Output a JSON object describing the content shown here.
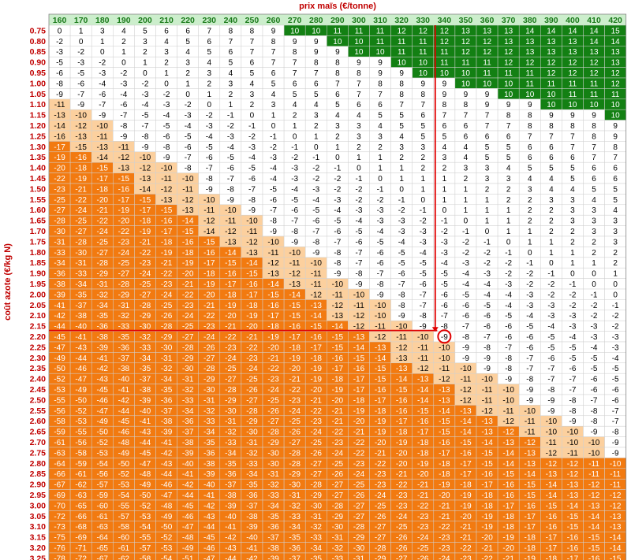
{
  "chart_data": {
    "type": "heatmap",
    "xlabel": "prix maïs (€/tonne)",
    "ylabel": "coût azote (€/kg N)",
    "x": [
      160,
      170,
      180,
      190,
      200,
      210,
      220,
      230,
      240,
      250,
      260,
      270,
      280,
      290,
      300,
      310,
      320,
      330,
      340,
      350,
      360,
      370,
      380,
      390,
      400,
      410,
      420
    ],
    "y": [
      0.75,
      0.8,
      0.85,
      0.9,
      0.95,
      1.0,
      1.05,
      1.1,
      1.15,
      1.2,
      1.25,
      1.3,
      1.35,
      1.4,
      1.45,
      1.5,
      1.55,
      1.6,
      1.65,
      1.7,
      1.75,
      1.8,
      1.85,
      1.9,
      1.95,
      2.0,
      2.05,
      2.1,
      2.15,
      2.2,
      2.25,
      2.3,
      2.35,
      2.4,
      2.45,
      2.5,
      2.55,
      2.6,
      2.65,
      2.7,
      2.75,
      2.8,
      2.85,
      2.9,
      2.95,
      3.0,
      3.05,
      3.1,
      3.15,
      3.2,
      3.25
    ],
    "values": [
      [
        0,
        1,
        3,
        4,
        5,
        6,
        6,
        7,
        8,
        8,
        9,
        10,
        10,
        11,
        11,
        11,
        12,
        12,
        12,
        13,
        13,
        13,
        14,
        14,
        14,
        14,
        15
      ],
      [
        -2,
        0,
        1,
        2,
        3,
        4,
        5,
        6,
        7,
        7,
        8,
        9,
        9,
        10,
        10,
        11,
        11,
        11,
        12,
        12,
        12,
        13,
        13,
        13,
        13,
        14,
        14
      ],
      [
        -3,
        -2,
        0,
        1,
        2,
        3,
        4,
        5,
        6,
        7,
        7,
        8,
        9,
        9,
        10,
        10,
        11,
        11,
        11,
        12,
        12,
        12,
        13,
        13,
        13,
        13,
        13
      ],
      [
        -5,
        -3,
        -2,
        0,
        1,
        2,
        3,
        4,
        5,
        6,
        7,
        7,
        8,
        8,
        9,
        9,
        10,
        10,
        11,
        11,
        11,
        12,
        12,
        12,
        12,
        12,
        13
      ],
      [
        -6,
        -5,
        -3,
        -2,
        0,
        1,
        2,
        3,
        4,
        5,
        6,
        7,
        7,
        8,
        8,
        9,
        9,
        10,
        10,
        10,
        11,
        11,
        11,
        12,
        12,
        12,
        12
      ],
      [
        -8,
        -6,
        -4,
        -3,
        -2,
        0,
        1,
        2,
        3,
        4,
        5,
        6,
        6,
        7,
        7,
        8,
        8,
        9,
        9,
        10,
        10,
        10,
        11,
        11,
        11,
        11,
        12
      ],
      [
        -9,
        -7,
        -6,
        -4,
        -3,
        -2,
        0,
        1,
        2,
        3,
        4,
        5,
        5,
        6,
        7,
        7,
        8,
        8,
        9,
        9,
        9,
        10,
        10,
        10,
        11,
        11,
        11
      ],
      [
        -11,
        -9,
        -7,
        -6,
        -4,
        -3,
        -2,
        0,
        1,
        2,
        3,
        4,
        4,
        5,
        6,
        6,
        7,
        7,
        8,
        8,
        9,
        9,
        9,
        10,
        10,
        10,
        10
      ],
      [
        -13,
        -10,
        -9,
        -7,
        -5,
        -4,
        -3,
        -2,
        -1,
        0,
        1,
        2,
        3,
        4,
        4,
        5,
        5,
        6,
        7,
        7,
        7,
        8,
        8,
        9,
        9,
        9,
        10
      ],
      [
        -14,
        -12,
        -10,
        -8,
        -7,
        -5,
        -4,
        -3,
        -2,
        -1,
        0,
        1,
        2,
        3,
        3,
        4,
        5,
        5,
        6,
        6,
        7,
        7,
        8,
        8,
        8,
        8,
        9
      ],
      [
        -16,
        -13,
        -11,
        -9,
        -8,
        -6,
        -5,
        -4,
        -3,
        -2,
        -1,
        0,
        1,
        2,
        3,
        3,
        4,
        5,
        5,
        6,
        6,
        6,
        7,
        7,
        7,
        8,
        9
      ],
      [
        -17,
        -15,
        -13,
        -11,
        -9,
        -8,
        -6,
        -5,
        -4,
        -3,
        -2,
        -1,
        0,
        1,
        2,
        2,
        3,
        3,
        4,
        4,
        5,
        5,
        6,
        6,
        7,
        7,
        8
      ],
      [
        -19,
        -16,
        -14,
        -12,
        -10,
        -9,
        -7,
        -6,
        -5,
        -4,
        -3,
        -2,
        -1,
        0,
        1,
        1,
        2,
        2,
        3,
        4,
        5,
        5,
        6,
        6,
        6,
        7,
        7
      ],
      [
        -20,
        -18,
        -15,
        -13,
        -12,
        -10,
        -8,
        -7,
        -6,
        -5,
        -4,
        -3,
        -2,
        -1,
        0,
        1,
        1,
        2,
        2,
        3,
        3,
        4,
        5,
        5,
        5,
        6,
        6
      ],
      [
        -22,
        -19,
        -17,
        -15,
        -13,
        -11,
        -10,
        -8,
        -7,
        -6,
        -4,
        -3,
        -2,
        -2,
        -1,
        0,
        1,
        1,
        1,
        2,
        3,
        3,
        4,
        4,
        5,
        6,
        6
      ],
      [
        -23,
        -21,
        -18,
        -16,
        -14,
        -12,
        -11,
        -9,
        -8,
        -7,
        -5,
        -4,
        -3,
        -2,
        -2,
        -1,
        0,
        1,
        1,
        1,
        2,
        2,
        3,
        4,
        4,
        5,
        5
      ],
      [
        -25,
        -22,
        -20,
        -17,
        -15,
        -13,
        -12,
        -10,
        -9,
        -8,
        -6,
        -5,
        -4,
        -3,
        -2,
        -2,
        -1,
        0,
        1,
        1,
        1,
        2,
        2,
        3,
        3,
        4,
        5
      ],
      [
        -27,
        -24,
        -21,
        -19,
        -17,
        -15,
        -13,
        -11,
        -10,
        -9,
        -7,
        -6,
        -5,
        -4,
        -3,
        -3,
        -2,
        -1,
        0,
        1,
        1,
        1,
        2,
        2,
        3,
        3,
        4
      ],
      [
        -28,
        -25,
        -22,
        -20,
        -18,
        -16,
        -14,
        -12,
        -11,
        -10,
        -8,
        -7,
        -6,
        -5,
        -4,
        -3,
        -3,
        -2,
        -1,
        0,
        1,
        1,
        2,
        2,
        3,
        3,
        3
      ],
      [
        -30,
        -27,
        -24,
        -22,
        -19,
        -17,
        -15,
        -14,
        -12,
        -11,
        -9,
        -8,
        -7,
        -6,
        -5,
        -4,
        -3,
        -3,
        -2,
        -1,
        0,
        1,
        1,
        2,
        2,
        3,
        3
      ],
      [
        -31,
        -28,
        -25,
        -23,
        -21,
        -18,
        -16,
        -15,
        -13,
        -12,
        -10,
        -9,
        -8,
        -7,
        -6,
        -5,
        -4,
        -3,
        -3,
        -2,
        -1,
        0,
        1,
        1,
        2,
        2,
        3
      ],
      [
        -33,
        -30,
        -27,
        -24,
        -22,
        -19,
        -18,
        -16,
        -14,
        -13,
        -11,
        -10,
        -9,
        -8,
        -7,
        -6,
        -5,
        -4,
        -3,
        -2,
        -2,
        -1,
        0,
        1,
        1,
        2,
        2
      ],
      [
        -34,
        -31,
        -28,
        -25,
        -23,
        -21,
        -19,
        -17,
        -15,
        -14,
        -12,
        -11,
        -10,
        -8,
        -7,
        -6,
        -5,
        -5,
        -4,
        -3,
        -2,
        -2,
        -1,
        0,
        1,
        1,
        2
      ],
      [
        -36,
        -33,
        -29,
        -27,
        -24,
        -22,
        -20,
        -18,
        -16,
        -15,
        -13,
        -12,
        -11,
        -9,
        -8,
        -7,
        -6,
        -5,
        -5,
        -4,
        -3,
        -2,
        -2,
        -1,
        0,
        0,
        1
      ],
      [
        -38,
        -34,
        -31,
        -28,
        -25,
        -23,
        -21,
        -19,
        -17,
        -16,
        -14,
        -13,
        -11,
        -10,
        -9,
        -8,
        -7,
        -6,
        -5,
        -4,
        -4,
        -3,
        -2,
        -2,
        -1,
        0,
        0
      ],
      [
        -39,
        -35,
        -32,
        -29,
        -27,
        -24,
        -22,
        -20,
        -18,
        -17,
        -15,
        -14,
        -12,
        -11,
        -10,
        -9,
        -8,
        -7,
        -6,
        -5,
        -4,
        -4,
        -3,
        -2,
        -2,
        -1,
        0
      ],
      [
        -41,
        -37,
        -34,
        -31,
        -28,
        -25,
        -23,
        -21,
        -19,
        -18,
        -16,
        -15,
        -13,
        -12,
        -11,
        -10,
        -8,
        -7,
        -6,
        -6,
        -5,
        -4,
        -3,
        -3,
        -2,
        -2,
        -1
      ],
      [
        -42,
        -38,
        -35,
        -32,
        -29,
        -26,
        -24,
        -22,
        -20,
        -19,
        -17,
        -15,
        -14,
        -13,
        -12,
        -10,
        -9,
        -8,
        -7,
        -6,
        -6,
        -5,
        -4,
        -3,
        -3,
        -2,
        -2
      ],
      [
        -44,
        -40,
        -36,
        -33,
        -30,
        -28,
        -25,
        -23,
        -21,
        -20,
        -18,
        -16,
        -15,
        -14,
        -12,
        -11,
        -10,
        -9,
        -8,
        -7,
        -6,
        -6,
        -5,
        -4,
        -3,
        -3,
        -2
      ],
      [
        -45,
        -41,
        -38,
        -35,
        -32,
        -29,
        -27,
        -24,
        -22,
        -21,
        -19,
        -17,
        -16,
        -15,
        -13,
        -12,
        -11,
        -10,
        -9,
        -8,
        -7,
        -6,
        -6,
        -5,
        -4,
        -3,
        -3
      ],
      [
        -47,
        -43,
        -39,
        -36,
        -33,
        -30,
        -28,
        -26,
        -23,
        -22,
        -20,
        -18,
        -17,
        -15,
        -14,
        -13,
        -12,
        -11,
        -10,
        -9,
        -8,
        -7,
        -6,
        -5,
        -5,
        -4,
        -3
      ],
      [
        -49,
        -44,
        -41,
        -37,
        -34,
        -31,
        -29,
        -27,
        -24,
        -23,
        -21,
        -19,
        -18,
        -16,
        -15,
        -14,
        -13,
        -11,
        -10,
        -9,
        -9,
        -8,
        -7,
        -6,
        -5,
        -5,
        -4
      ],
      [
        -50,
        -46,
        -42,
        -38,
        -35,
        -32,
        -30,
        -28,
        -25,
        -24,
        -22,
        -20,
        -19,
        -17,
        -16,
        -15,
        -13,
        -12,
        -11,
        -10,
        -9,
        -8,
        -7,
        -7,
        -6,
        -5,
        -5
      ],
      [
        -52,
        -47,
        -43,
        -40,
        -37,
        -34,
        -31,
        -29,
        -27,
        -25,
        -23,
        -21,
        -19,
        -18,
        -17,
        -15,
        -14,
        -13,
        -12,
        -11,
        -10,
        -9,
        -8,
        -7,
        -7,
        -6,
        -5
      ],
      [
        -53,
        -49,
        -45,
        -41,
        -38,
        -35,
        -32,
        -30,
        -28,
        -26,
        -24,
        -22,
        -20,
        -19,
        -17,
        -16,
        -15,
        -14,
        -13,
        -12,
        -11,
        -10,
        -9,
        -8,
        -7,
        -6,
        -6
      ],
      [
        -55,
        -50,
        -46,
        -42,
        -39,
        -36,
        -33,
        -31,
        -29,
        -27,
        -25,
        -23,
        -21,
        -20,
        -18,
        -17,
        -16,
        -14,
        -13,
        -12,
        -11,
        -10,
        -9,
        -9,
        -8,
        -7,
        -6
      ],
      [
        -56,
        -52,
        -47,
        -44,
        -40,
        -37,
        -34,
        -32,
        -30,
        -28,
        -26,
        -24,
        -22,
        -21,
        -19,
        -18,
        -16,
        -15,
        -14,
        -13,
        -12,
        -11,
        -10,
        -9,
        -8,
        -8,
        -7
      ],
      [
        -58,
        -53,
        -49,
        -45,
        -41,
        -38,
        -36,
        -33,
        -31,
        -29,
        -27,
        -25,
        -23,
        -21,
        -20,
        -19,
        -17,
        -16,
        -15,
        -14,
        -13,
        -12,
        -11,
        -10,
        -9,
        -8,
        -7
      ],
      [
        -59,
        -55,
        -50,
        -46,
        -43,
        -39,
        -37,
        -34,
        -32,
        -30,
        -28,
        -26,
        -24,
        -22,
        -21,
        -19,
        -18,
        -17,
        -15,
        -14,
        -13,
        -12,
        -11,
        -10,
        -10,
        -9,
        -8
      ],
      [
        -61,
        -56,
        -52,
        -48,
        -44,
        -41,
        -38,
        -35,
        -33,
        -31,
        -29,
        -27,
        -25,
        -23,
        -22,
        -20,
        -19,
        -18,
        -16,
        -15,
        -14,
        -13,
        -12,
        -11,
        -10,
        -10,
        -9
      ],
      [
        -63,
        -58,
        -53,
        -49,
        -45,
        -42,
        -39,
        -36,
        -34,
        -32,
        -30,
        -28,
        -26,
        -24,
        -22,
        -21,
        -20,
        -18,
        -17,
        -16,
        -15,
        -14,
        -13,
        -12,
        -11,
        -10,
        -9
      ],
      [
        -64,
        -59,
        -54,
        -50,
        -47,
        -43,
        -40,
        -38,
        -35,
        -33,
        -30,
        -28,
        -27,
        -25,
        -23,
        -22,
        -20,
        -19,
        -18,
        -17,
        -15,
        -14,
        -13,
        -12,
        -12,
        -11,
        -10
      ],
      [
        -66,
        -61,
        -56,
        -52,
        -48,
        -44,
        -41,
        -39,
        -36,
        -34,
        -31,
        -29,
        -27,
        -26,
        -24,
        -23,
        -21,
        -20,
        -18,
        -17,
        -16,
        -15,
        -14,
        -13,
        -12,
        -11,
        -11
      ],
      [
        -67,
        -62,
        -57,
        -53,
        -49,
        -46,
        -42,
        -40,
        -37,
        -35,
        -32,
        -30,
        -28,
        -27,
        -25,
        -23,
        -22,
        -21,
        -19,
        -18,
        -17,
        -16,
        -15,
        -14,
        -13,
        -12,
        -11
      ],
      [
        -69,
        -63,
        -59,
        -54,
        -50,
        -47,
        -44,
        -41,
        -38,
        -36,
        -33,
        -31,
        -29,
        -27,
        -26,
        -24,
        -23,
        -21,
        -20,
        -19,
        -18,
        -16,
        -15,
        -14,
        -13,
        -12,
        -12
      ],
      [
        -70,
        -65,
        -60,
        -55,
        -52,
        -48,
        -45,
        -42,
        -39,
        -37,
        -34,
        -32,
        -30,
        -28,
        -27,
        -25,
        -23,
        -22,
        -21,
        -19,
        -18,
        -17,
        -16,
        -15,
        -14,
        -13,
        -12
      ],
      [
        -72,
        -66,
        -61,
        -57,
        -53,
        -49,
        -46,
        -43,
        -40,
        -38,
        -35,
        -33,
        -31,
        -29,
        -27,
        -26,
        -24,
        -23,
        -21,
        -20,
        -19,
        -18,
        -17,
        -16,
        -15,
        -14,
        -13
      ],
      [
        -73,
        -68,
        -63,
        -58,
        -54,
        -50,
        -47,
        -44,
        -41,
        -39,
        -36,
        -34,
        -32,
        -30,
        -28,
        -27,
        -25,
        -23,
        -22,
        -21,
        -19,
        -18,
        -17,
        -16,
        -15,
        -14,
        -13
      ],
      [
        -75,
        -69,
        -64,
        -60,
        -55,
        -52,
        -48,
        -45,
        -42,
        -40,
        -37,
        -35,
        -33,
        -31,
        -29,
        -27,
        -26,
        -24,
        -23,
        -21,
        -20,
        -19,
        -18,
        -17,
        -16,
        -15,
        -14
      ],
      [
        -76,
        -71,
        -65,
        -61,
        -57,
        -53,
        -49,
        -46,
        -43,
        -41,
        -38,
        -36,
        -34,
        -32,
        -30,
        -28,
        -26,
        -25,
        -23,
        -22,
        -21,
        -20,
        -18,
        -17,
        -16,
        -15,
        -14
      ],
      [
        -78,
        -72,
        -67,
        -62,
        -58,
        -54,
        -51,
        -47,
        -44,
        -42,
        -39,
        -37,
        -35,
        -33,
        -31,
        -29,
        -27,
        -26,
        -24,
        -23,
        -22,
        -21,
        -19,
        -18,
        -17,
        -16,
        -15
      ]
    ],
    "thresholds": {
      "green_min": 10,
      "light_max": -9
    },
    "colors": {
      "green": "#138013",
      "light_orange": "#fcd09e",
      "orange": "#f27a10",
      "highlight": "#e00000",
      "header": "#cceecc",
      "label": "#c00000"
    },
    "highlight": {
      "x": 340,
      "y": 2.2,
      "value": -9
    },
    "grid": true
  }
}
